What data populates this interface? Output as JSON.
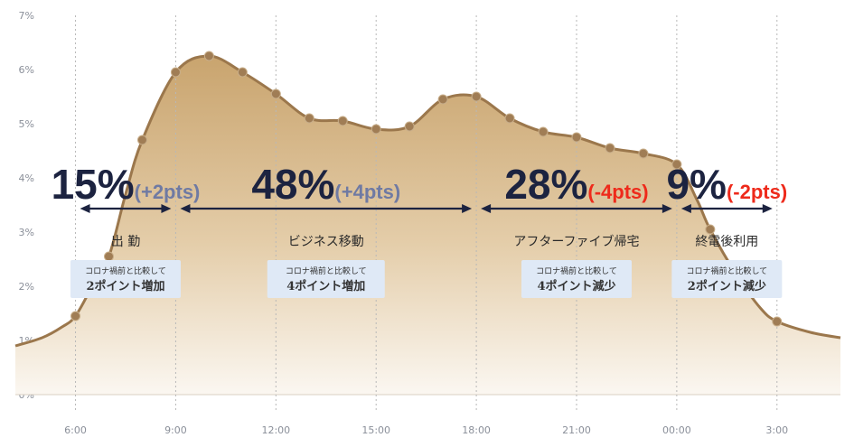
{
  "colors": {
    "area_top": "#c9a46e",
    "area_bottom": "#fbf7f1",
    "line": "#9b774c",
    "marker": "#a07d55",
    "pct_text": "#1c2340",
    "pts_positive": "#6f7aa3",
    "pts_negative": "#ee2a1b",
    "box_bg": "#dfe9f6",
    "arrow": "#1c2340",
    "grid": "#b8b8b8"
  },
  "chart_data": {
    "type": "area",
    "title": "",
    "xlabel": "",
    "ylabel": "",
    "xlim": [
      4.2,
      28.9
    ],
    "ylim": [
      0,
      7
    ],
    "x_ticks": [
      {
        "value": 6,
        "label": "6:00"
      },
      {
        "value": 9,
        "label": "9:00"
      },
      {
        "value": 12,
        "label": "12:00"
      },
      {
        "value": 15,
        "label": "15:00"
      },
      {
        "value": 18,
        "label": "18:00"
      },
      {
        "value": 21,
        "label": "21:00"
      },
      {
        "value": 24,
        "label": "00:00"
      },
      {
        "value": 27,
        "label": "3:00"
      }
    ],
    "y_ticks": [
      {
        "value": 0,
        "label": "0%"
      },
      {
        "value": 1,
        "label": "1%"
      },
      {
        "value": 2,
        "label": "2%"
      },
      {
        "value": 3,
        "label": "3%"
      },
      {
        "value": 4,
        "label": "4%"
      },
      {
        "value": 5,
        "label": "5%"
      },
      {
        "value": 6,
        "label": "6%"
      },
      {
        "value": 7,
        "label": "7%"
      }
    ],
    "grid": {
      "vertical": true,
      "horizontal": false
    },
    "curve": [
      {
        "x": 4.2,
        "y": 0.9
      },
      {
        "x": 5.0,
        "y": 1.05
      },
      {
        "x": 5.6,
        "y": 1.25
      },
      {
        "x": 6.0,
        "y": 1.45
      },
      {
        "x": 6.5,
        "y": 2.0
      },
      {
        "x": 7.0,
        "y": 2.55
      },
      {
        "x": 7.5,
        "y": 3.7
      },
      {
        "x": 8.0,
        "y": 4.7
      },
      {
        "x": 9.0,
        "y": 5.95
      },
      {
        "x": 10.0,
        "y": 6.25
      },
      {
        "x": 11.0,
        "y": 5.95
      },
      {
        "x": 12.0,
        "y": 5.55
      },
      {
        "x": 13.0,
        "y": 5.1
      },
      {
        "x": 14.0,
        "y": 5.05
      },
      {
        "x": 15.0,
        "y": 4.9
      },
      {
        "x": 16.0,
        "y": 4.95
      },
      {
        "x": 17.0,
        "y": 5.45
      },
      {
        "x": 18.0,
        "y": 5.5
      },
      {
        "x": 19.0,
        "y": 5.1
      },
      {
        "x": 20.0,
        "y": 4.85
      },
      {
        "x": 21.0,
        "y": 4.75
      },
      {
        "x": 22.0,
        "y": 4.55
      },
      {
        "x": 23.0,
        "y": 4.45
      },
      {
        "x": 24.0,
        "y": 4.25
      },
      {
        "x": 24.6,
        "y": 3.6
      },
      {
        "x": 25.0,
        "y": 3.05
      },
      {
        "x": 25.8,
        "y": 2.2
      },
      {
        "x": 26.5,
        "y": 1.6
      },
      {
        "x": 27.0,
        "y": 1.35
      },
      {
        "x": 28.0,
        "y": 1.15
      },
      {
        "x": 28.9,
        "y": 1.05
      }
    ],
    "markers": [
      {
        "x": 6.0,
        "y": 1.45
      },
      {
        "x": 7.0,
        "y": 2.55
      },
      {
        "x": 8.0,
        "y": 4.7
      },
      {
        "x": 9.0,
        "y": 5.95
      },
      {
        "x": 10.0,
        "y": 6.25
      },
      {
        "x": 11.0,
        "y": 5.95
      },
      {
        "x": 12.0,
        "y": 5.55
      },
      {
        "x": 13.0,
        "y": 5.1
      },
      {
        "x": 14.0,
        "y": 5.05
      },
      {
        "x": 15.0,
        "y": 4.9
      },
      {
        "x": 16.0,
        "y": 4.95
      },
      {
        "x": 17.0,
        "y": 5.45
      },
      {
        "x": 18.0,
        "y": 5.5
      },
      {
        "x": 19.0,
        "y": 5.1
      },
      {
        "x": 20.0,
        "y": 4.85
      },
      {
        "x": 21.0,
        "y": 4.75
      },
      {
        "x": 22.0,
        "y": 4.55
      },
      {
        "x": 23.0,
        "y": 4.45
      },
      {
        "x": 24.0,
        "y": 4.25
      },
      {
        "x": 25.0,
        "y": 3.05
      },
      {
        "x": 27.0,
        "y": 1.35
      }
    ],
    "segments": [
      {
        "key": "commute",
        "x_start": 6,
        "x_end": 9,
        "share": "15%",
        "change": "(+2pts)",
        "change_sign": "positive",
        "label": "出 勤",
        "note_line1": "コロナ禍前と比較して",
        "note_line2": "2ポイント増加"
      },
      {
        "key": "business",
        "x_start": 9,
        "x_end": 18,
        "share": "48%",
        "change": "(+4pts)",
        "change_sign": "positive",
        "label": "ビジネス移動",
        "note_line1": "コロナ禍前と比較して",
        "note_line2": "4ポイント増加"
      },
      {
        "key": "after_five",
        "x_start": 18,
        "x_end": 24,
        "share": "28%",
        "change": "(-4pts)",
        "change_sign": "negative",
        "label": "アフターファイブ帰宅",
        "note_line1": "コロナ禍前と比較して",
        "note_line2": "4ポイント減少"
      },
      {
        "key": "last_train",
        "x_start": 24,
        "x_end": 27,
        "share": "9%",
        "change": "(-2pts)",
        "change_sign": "negative",
        "label": "終電後利用",
        "note_line1": "コロナ禍前と比較して",
        "note_line2": "2ポイント減少"
      }
    ]
  }
}
